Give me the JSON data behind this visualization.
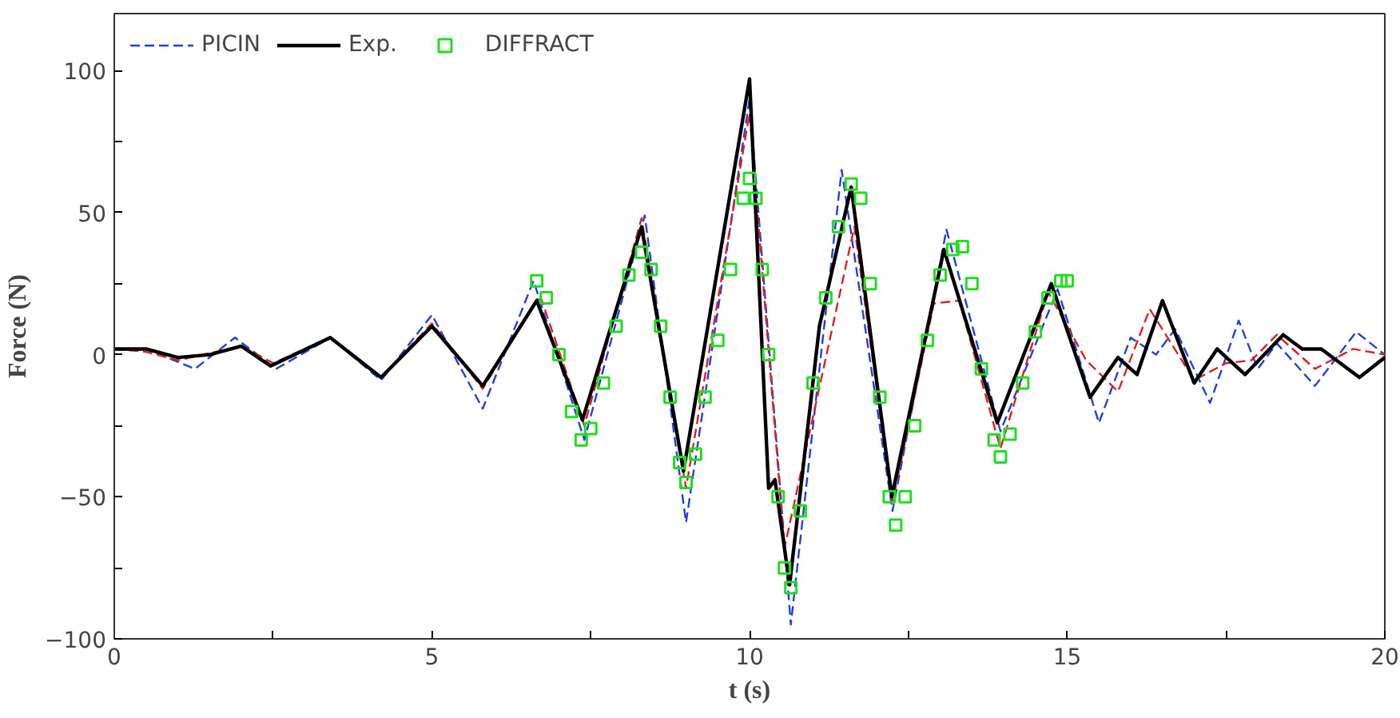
{
  "chart_data": {
    "type": "line",
    "xlabel": "t (s)",
    "ylabel": "Force (N)",
    "xlim": [
      0,
      20
    ],
    "ylim": [
      -100,
      120
    ],
    "xticks": [
      0,
      {
        "value": 2.5,
        "label": null
      },
      5,
      {
        "value": 7.5,
        "label": null
      },
      10,
      {
        "value": 12.5,
        "label": null
      },
      15,
      {
        "value": 17.5,
        "label": null
      },
      20
    ],
    "yticks": [
      {
        "value": -100,
        "label": "−100"
      },
      {
        "value": -75,
        "label": null
      },
      {
        "value": -50,
        "label": "−50"
      },
      {
        "value": -25,
        "label": null
      },
      0,
      {
        "value": 25,
        "label": null
      },
      50,
      {
        "value": 75,
        "label": null
      },
      100
    ],
    "grid": false,
    "legend": "top left",
    "series": [
      {
        "name": "PICIN",
        "color": "#2040e0",
        "line_style": "dashed",
        "x": [
          0,
          0.5,
          1.27,
          1.9,
          2.55,
          3.4,
          4.2,
          5.0,
          5.8,
          6.6,
          7.4,
          8.35,
          9.0,
          10.0,
          10.65,
          11.45,
          12.25,
          13.1,
          13.95,
          14.85,
          15.5,
          16.0,
          16.4,
          16.7,
          17.25,
          17.7,
          18.0,
          18.3,
          18.9,
          19.55,
          20
        ],
        "values": [
          2,
          2,
          -5,
          6,
          -5,
          6,
          -9,
          14,
          -19,
          26,
          -30,
          49,
          -59,
          90,
          -95,
          65,
          -55,
          44,
          -27,
          23,
          -24,
          6,
          0,
          9,
          -17,
          12,
          -5,
          4,
          -11,
          8,
          0
        ]
      },
      {
        "color": "#e02020",
        "line_style": "dashed",
        "x": [
          0,
          0.5,
          1.0,
          2.0,
          2.5,
          3.4,
          4.2,
          5.0,
          5.8,
          6.7,
          7.4,
          8.3,
          9.0,
          10.0,
          10.55,
          11.65,
          12.25,
          12.9,
          13.3,
          13.95,
          14.7,
          15.3,
          15.8,
          16.3,
          17.0,
          17.5,
          17.9,
          18.3,
          18.9,
          19.5,
          20
        ],
        "values": [
          2,
          1,
          -2,
          3,
          -3,
          6,
          -8,
          11,
          -12,
          21,
          -25,
          48,
          -47,
          85,
          -68,
          45,
          -52,
          18,
          19,
          -33,
          22,
          -2,
          -13,
          16,
          -9,
          -3,
          -2,
          7,
          -5,
          2,
          0
        ]
      },
      {
        "name": "Exp.",
        "color": "#000000",
        "line_style": "solid",
        "x": [
          0,
          0.5,
          1.0,
          1.5,
          2.0,
          2.46,
          3.4,
          4.2,
          5.0,
          5.8,
          6.65,
          7.37,
          8.3,
          8.96,
          10.0,
          10.3,
          10.4,
          10.63,
          11.1,
          11.6,
          12.24,
          13.06,
          13.9,
          14.75,
          15.36,
          15.8,
          16.1,
          16.5,
          17.0,
          17.36,
          17.8,
          18.4,
          18.7,
          19.0,
          19.6,
          20
        ],
        "values": [
          2,
          2,
          -1,
          0,
          3,
          -4,
          6,
          -8,
          10,
          -11,
          19,
          -23,
          45,
          -41,
          97,
          -47,
          -44,
          -81,
          10,
          59,
          -50,
          37,
          -24,
          25,
          -15,
          -1,
          -7,
          19,
          -10,
          2,
          -7,
          7,
          2,
          2,
          -8,
          -1
        ]
      },
      {
        "name": "DIFFRACT",
        "color": "#22dd22",
        "type": "scatter",
        "marker": "square",
        "x": [
          6.65,
          6.8,
          7.0,
          7.2,
          7.35,
          7.5,
          7.7,
          7.9,
          8.1,
          8.3,
          8.45,
          8.6,
          8.75,
          8.9,
          9.0,
          9.15,
          9.3,
          9.5,
          9.7,
          9.9,
          10.0,
          10.1,
          10.2,
          10.3,
          10.45,
          10.55,
          10.65,
          10.8,
          11.0,
          11.2,
          11.4,
          11.6,
          11.75,
          11.9,
          12.05,
          12.2,
          12.3,
          12.45,
          12.6,
          12.8,
          13.0,
          13.2,
          13.35,
          13.5,
          13.65,
          13.85,
          13.95,
          14.1,
          14.3,
          14.5,
          14.7,
          14.9,
          15.0
        ],
        "values": [
          26,
          20,
          0,
          -20,
          -30,
          -26,
          -10,
          10,
          28,
          36,
          30,
          10,
          -15,
          -38,
          -45,
          -35,
          -15,
          5,
          30,
          55,
          62,
          55,
          30,
          0,
          -50,
          -75,
          -82,
          -55,
          -10,
          20,
          45,
          60,
          55,
          25,
          -15,
          -50,
          -60,
          -50,
          -25,
          5,
          28,
          37,
          38,
          25,
          -5,
          -30,
          -36,
          -28,
          -10,
          8,
          20,
          26,
          26
        ]
      }
    ]
  }
}
